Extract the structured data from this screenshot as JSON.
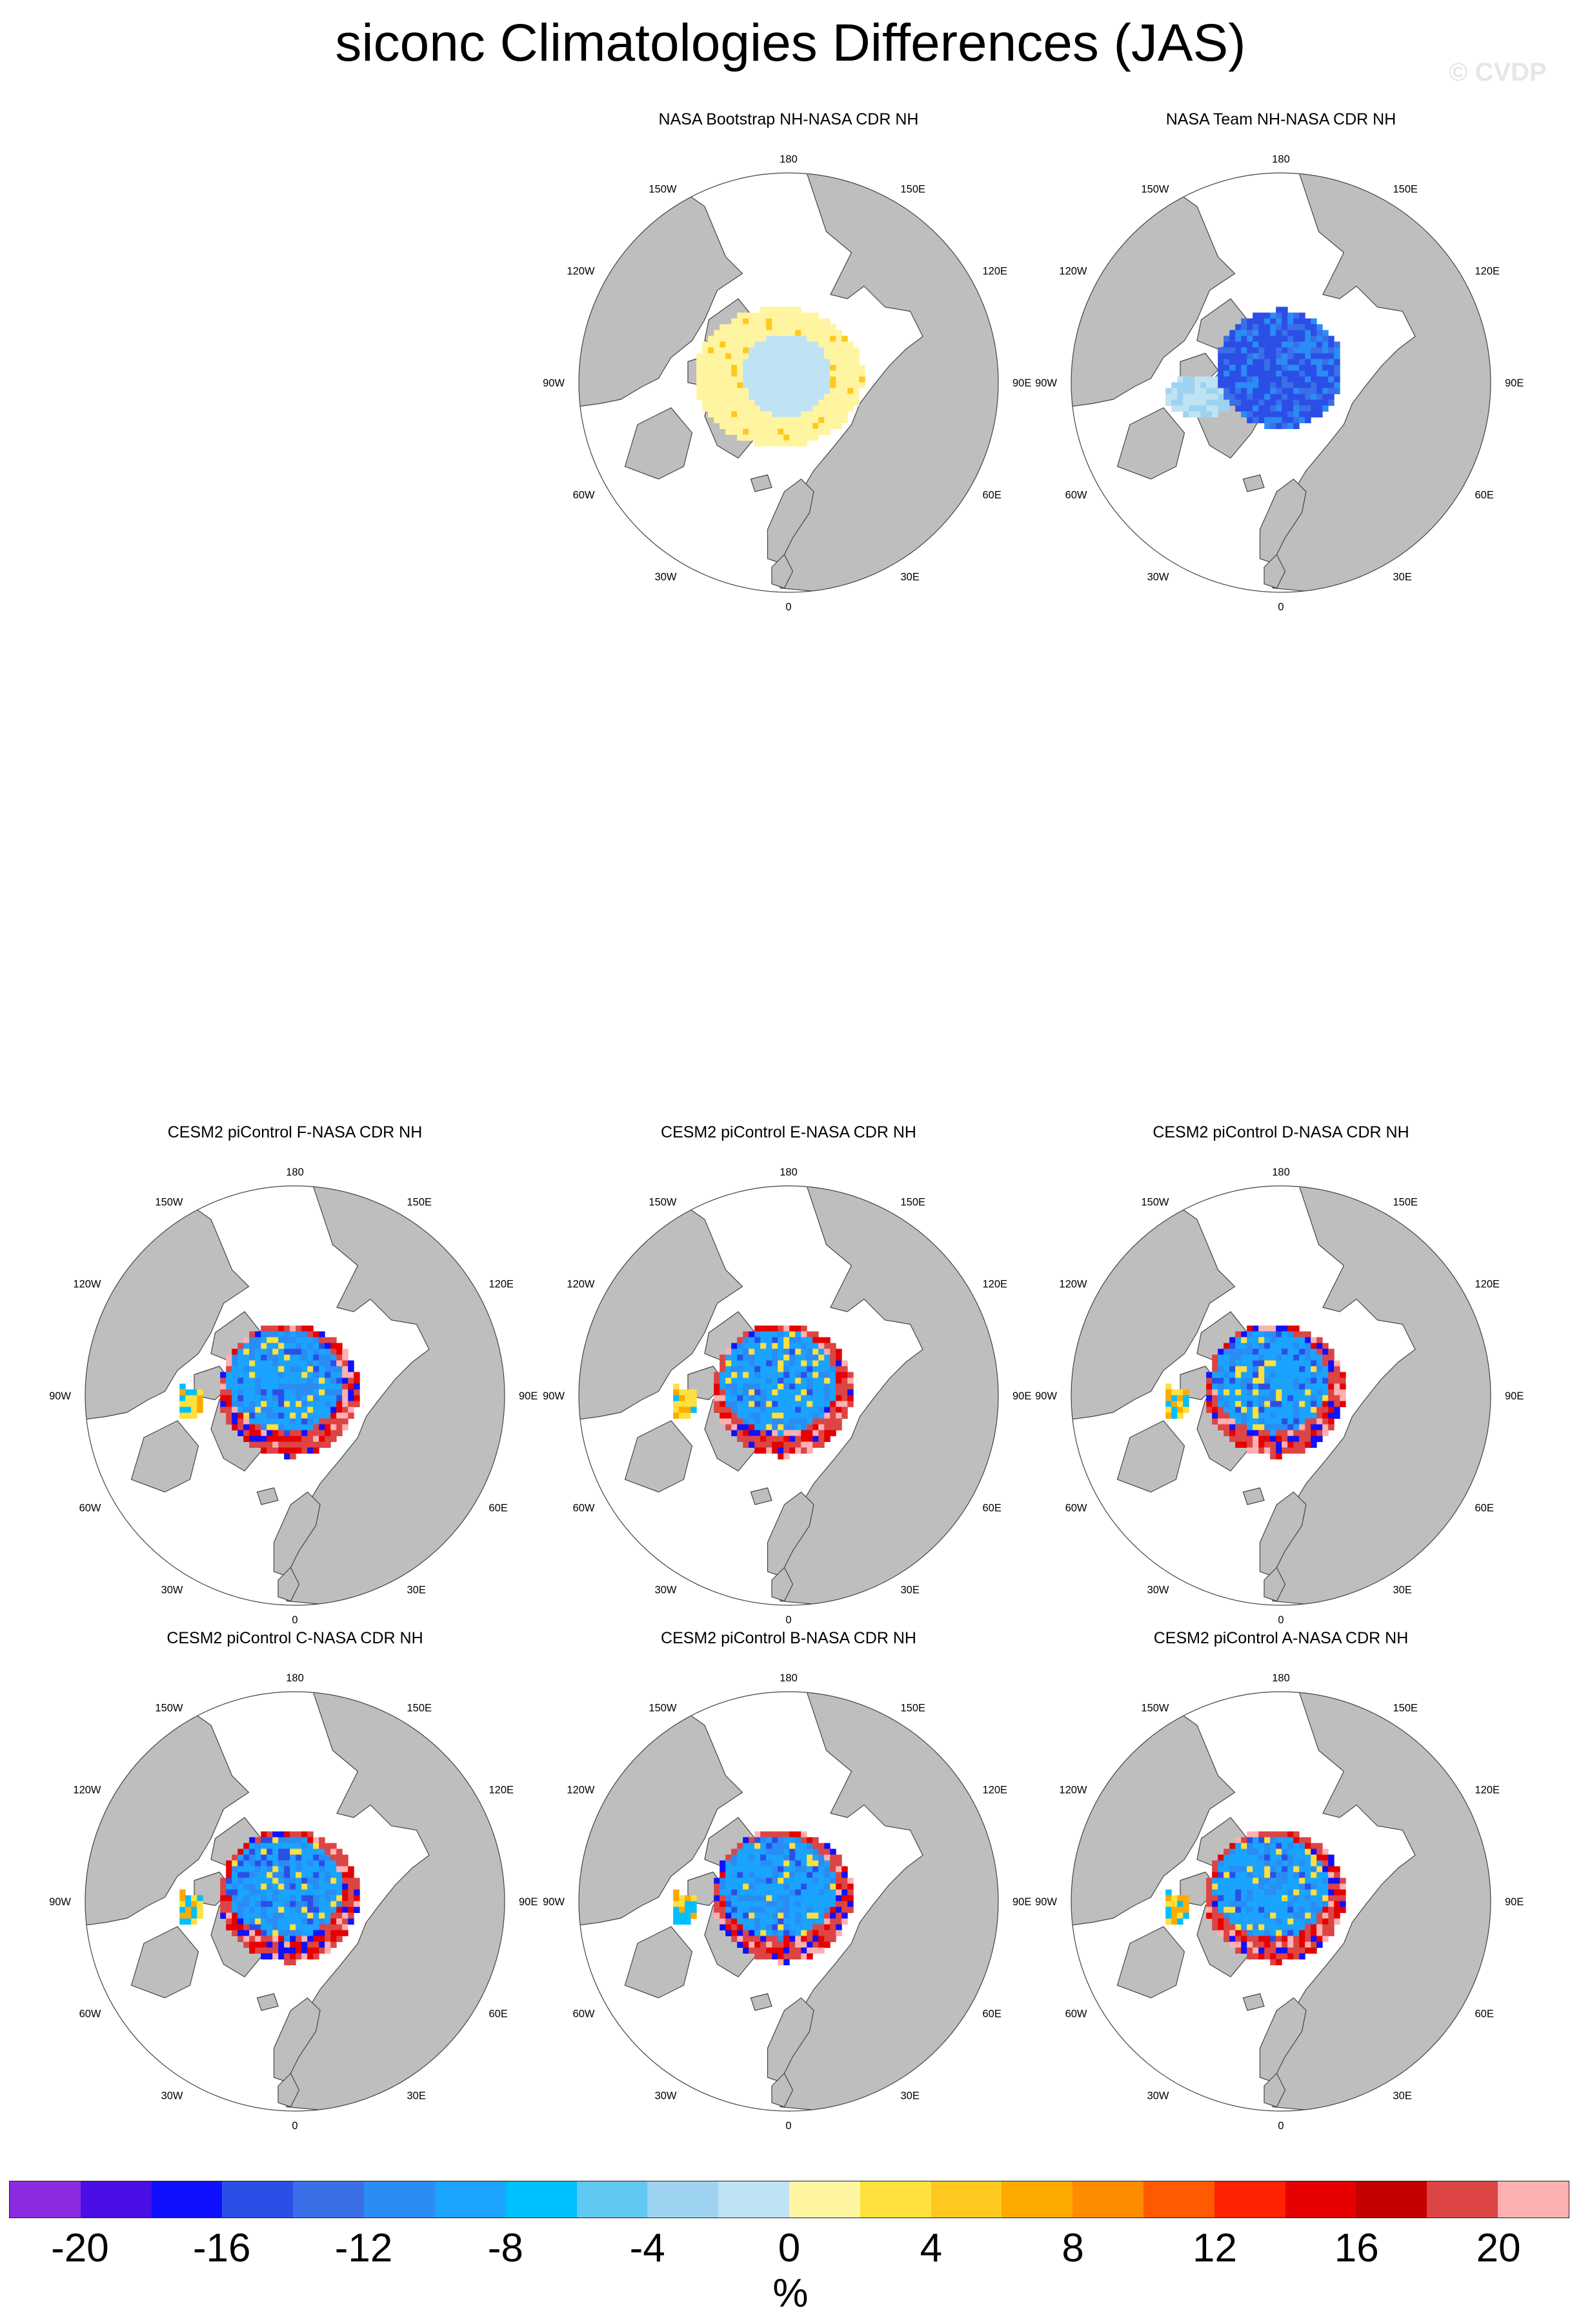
{
  "title": "siconc Climatologies Differences (JAS)",
  "watermark": "© CVDP",
  "panels": [
    {
      "title": "NASA Bootstrap NH-NASA CDR NH",
      "pattern": "bootstrap"
    },
    {
      "title": "NASA Team NH-NASA CDR NH",
      "pattern": "team"
    },
    {
      "title": "CESM2 piControl F-NASA CDR NH",
      "pattern": "cesm"
    },
    {
      "title": "CESM2 piControl E-NASA CDR NH",
      "pattern": "cesm"
    },
    {
      "title": "CESM2 piControl D-NASA CDR NH",
      "pattern": "cesm"
    },
    {
      "title": "CESM2 piControl C-NASA CDR NH",
      "pattern": "cesm"
    },
    {
      "title": "CESM2 piControl B-NASA CDR NH",
      "pattern": "cesm"
    },
    {
      "title": "CESM2 piControl A-NASA CDR NH",
      "pattern": "cesm"
    }
  ],
  "longitude_labels": [
    "180",
    "150E",
    "120E",
    "90E",
    "60E",
    "30E",
    "0",
    "30W",
    "60W",
    "90W",
    "120W",
    "150W"
  ],
  "colorbar": {
    "colors": [
      "#8a2be2",
      "#4b0fe6",
      "#1010ff",
      "#2b4fe6",
      "#3a6fe8",
      "#2a8cf5",
      "#1aa3ff",
      "#00bfff",
      "#5ec8f2",
      "#9dd3f0",
      "#bfe2f5",
      "#fff5a0",
      "#ffe03c",
      "#ffc81e",
      "#ffaa00",
      "#ff8c00",
      "#ff5a00",
      "#ff2200",
      "#e60000",
      "#c40000",
      "#dd4444",
      "#ffb0b0"
    ],
    "tick_labels": [
      "-20",
      "-16",
      "-12",
      "-8",
      "-4",
      "0",
      "4",
      "8",
      "12",
      "16",
      "20"
    ],
    "units": "%"
  },
  "colors": {
    "land": "#bebebe",
    "ocean": "#ffffff",
    "coastline": "#444444"
  }
}
